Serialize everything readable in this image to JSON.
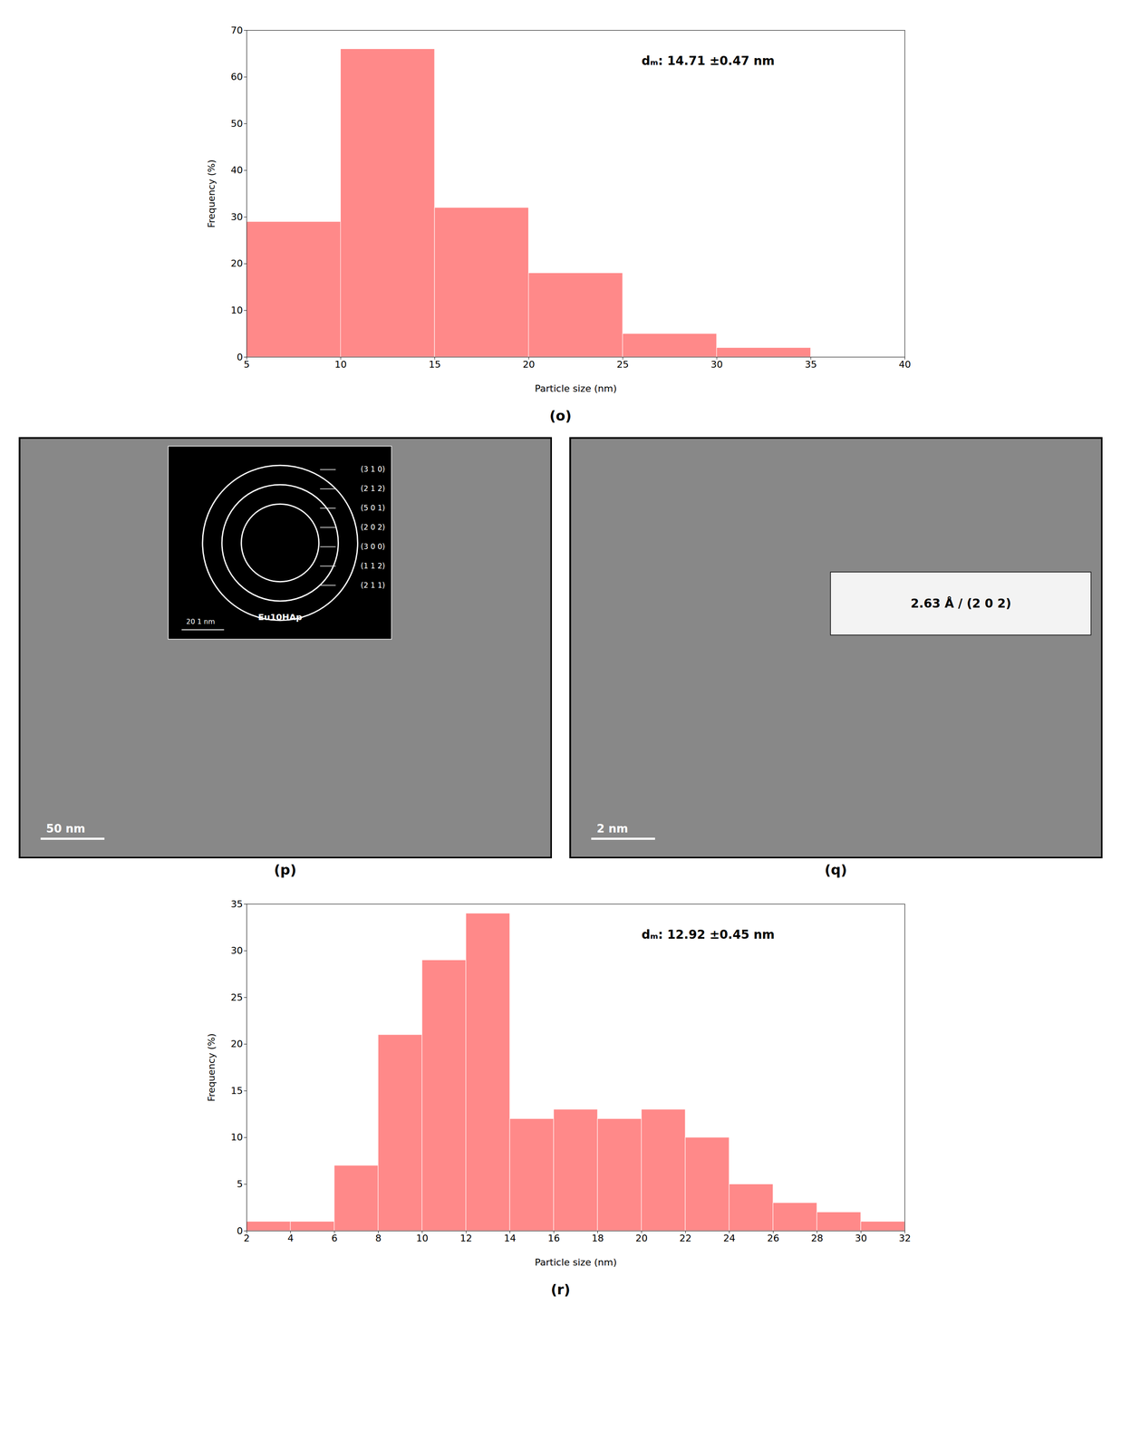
{
  "chart_data": [
    {
      "type": "histogram",
      "title": "(o)",
      "bins": [
        5,
        10,
        15,
        20,
        25,
        30,
        35,
        40
      ],
      "values": [
        29,
        66,
        32,
        18,
        5,
        2,
        0
      ],
      "color": "#FF6B6B",
      "xlim": [
        5,
        40
      ],
      "ylim": [
        0,
        70
      ],
      "xticks": [
        5,
        10,
        15,
        20,
        25,
        30,
        35,
        40
      ],
      "yticks": [
        0,
        10,
        20,
        30,
        40,
        50,
        60,
        70
      ],
      "xlabel": "Particle size (nm)",
      "ylabel": "Frequency (%)",
      "annotations": [
        "dₘ: 14.71 ±0.47 nm"
      ]
    },
    {
      "type": "image",
      "title": "(p)",
      "tick_labels": false,
      "annotations": [
        "50 nm",
        "Eu10HAp",
        "(3 1 0)",
        "(2 1 2)",
        "(5 0 1)",
        "(2 0 2)",
        "(3 0 0)",
        "(1 1 2)",
        "(2 1 1)",
        "20 1 nm"
      ]
    },
    {
      "type": "image",
      "title": "(q)",
      "tick_labels": false,
      "annotations": [
        "2 nm",
        "2.63 Å / (2 0 2)"
      ]
    },
    {
      "type": "histogram",
      "title": "(r)",
      "bins": [
        2,
        4,
        6,
        8,
        10,
        12,
        14,
        16,
        18,
        20,
        22,
        24,
        26,
        28,
        30,
        32
      ],
      "values": [
        1,
        1,
        7,
        21,
        29,
        34,
        12,
        13,
        12,
        13,
        10,
        5,
        3,
        2,
        1
      ],
      "color": "#FF6B6B",
      "xlim": [
        2,
        32
      ],
      "ylim": [
        0,
        35
      ],
      "xticks": [
        2,
        4,
        6,
        8,
        10,
        12,
        14,
        16,
        18,
        20,
        22,
        24,
        26,
        28,
        30,
        32
      ],
      "yticks": [
        0,
        5,
        10,
        15,
        20,
        25,
        30,
        35
      ],
      "xlabel": "Particle size (nm)",
      "ylabel": "Frequency (%)",
      "annotations": [
        "dₘ: 12.92 ±0.45 nm"
      ]
    }
  ]
}
